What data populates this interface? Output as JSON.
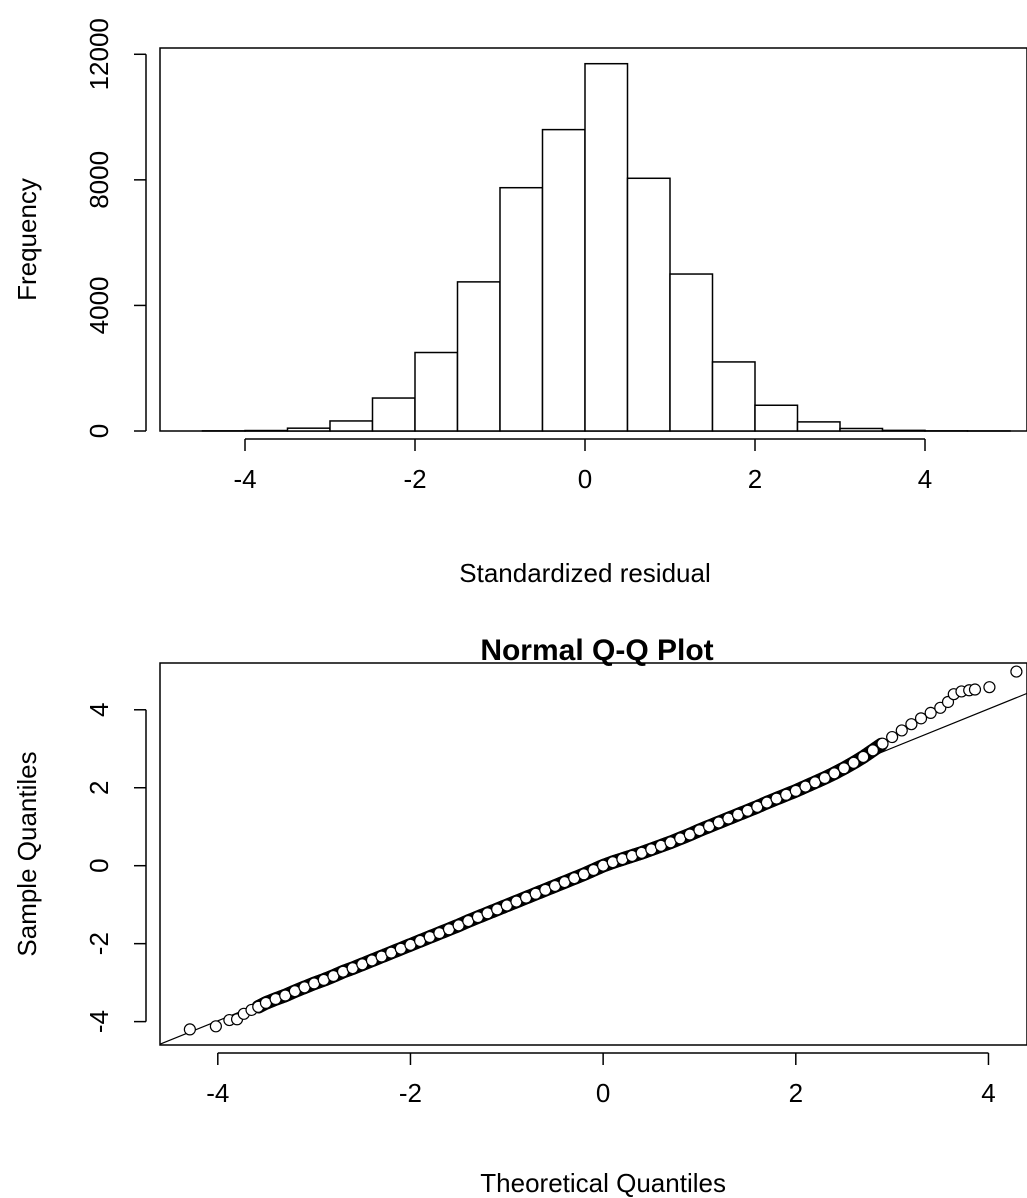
{
  "chart_data": [
    {
      "type": "bar",
      "subtype": "histogram",
      "title": "",
      "xlabel": "Standardized residual",
      "ylabel": "Frequency",
      "bin_edges": [
        -4.5,
        -4.0,
        -3.5,
        -3.0,
        -2.5,
        -2.0,
        -1.5,
        -1.0,
        -0.5,
        0.0,
        0.5,
        1.0,
        1.5,
        2.0,
        2.5,
        3.0,
        3.5,
        4.0,
        4.5,
        5.0
      ],
      "values": [
        5,
        15,
        90,
        320,
        1050,
        2500,
        4750,
        7750,
        9600,
        11700,
        8050,
        5000,
        2200,
        820,
        290,
        80,
        20,
        5,
        2
      ],
      "xlim": [
        -5.0,
        5.2
      ],
      "ylim": [
        0,
        12200
      ],
      "x_ticks": [
        -4,
        -2,
        0,
        2,
        4
      ],
      "x_tick_labels": [
        "-4",
        "-2",
        "0",
        "2",
        "4"
      ],
      "y_ticks": [
        0,
        4000,
        8000,
        12000
      ],
      "y_tick_labels": [
        "0",
        "4000",
        "8000",
        "12000"
      ],
      "grid": false
    },
    {
      "type": "scatter",
      "subtype": "qq-plot",
      "title": "Normal Q-Q Plot",
      "xlabel": "Theoretical Quantiles",
      "ylabel": "Sample Quantiles",
      "points": [
        [
          -4.29,
          -4.2
        ],
        [
          -4.02,
          -4.12
        ],
        [
          -3.88,
          -3.96
        ],
        [
          -3.8,
          -3.94
        ],
        [
          -3.73,
          -3.8
        ],
        [
          -3.65,
          -3.7
        ],
        [
          -3.58,
          -3.62
        ],
        [
          -3.5,
          -3.52
        ],
        [
          -3.4,
          -3.42
        ],
        [
          -3.3,
          -3.33
        ],
        [
          -3.2,
          -3.22
        ],
        [
          -3.1,
          -3.12
        ],
        [
          -3.0,
          -3.02
        ],
        [
          -2.9,
          -2.93
        ],
        [
          -2.8,
          -2.83
        ],
        [
          -2.7,
          -2.72
        ],
        [
          -2.6,
          -2.63
        ],
        [
          -2.5,
          -2.53
        ],
        [
          -2.4,
          -2.43
        ],
        [
          -2.3,
          -2.33
        ],
        [
          -2.2,
          -2.23
        ],
        [
          -2.1,
          -2.13
        ],
        [
          -2.0,
          -2.03
        ],
        [
          -1.9,
          -1.93
        ],
        [
          -1.8,
          -1.83
        ],
        [
          -1.7,
          -1.73
        ],
        [
          -1.6,
          -1.63
        ],
        [
          -1.5,
          -1.53
        ],
        [
          -1.4,
          -1.42
        ],
        [
          -1.3,
          -1.32
        ],
        [
          -1.2,
          -1.22
        ],
        [
          -1.1,
          -1.12
        ],
        [
          -1.0,
          -1.02
        ],
        [
          -0.9,
          -0.92
        ],
        [
          -0.8,
          -0.82
        ],
        [
          -0.7,
          -0.72
        ],
        [
          -0.6,
          -0.62
        ],
        [
          -0.5,
          -0.52
        ],
        [
          -0.4,
          -0.42
        ],
        [
          -0.3,
          -0.32
        ],
        [
          -0.2,
          -0.22
        ],
        [
          -0.1,
          -0.11
        ],
        [
          0.0,
          0.0
        ],
        [
          0.1,
          0.09
        ],
        [
          0.2,
          0.17
        ],
        [
          0.3,
          0.25
        ],
        [
          0.4,
          0.33
        ],
        [
          0.5,
          0.42
        ],
        [
          0.6,
          0.51
        ],
        [
          0.7,
          0.6
        ],
        [
          0.8,
          0.7
        ],
        [
          0.9,
          0.8
        ],
        [
          1.0,
          0.91
        ],
        [
          1.1,
          1.01
        ],
        [
          1.2,
          1.11
        ],
        [
          1.3,
          1.21
        ],
        [
          1.4,
          1.31
        ],
        [
          1.5,
          1.41
        ],
        [
          1.6,
          1.51
        ],
        [
          1.7,
          1.62
        ],
        [
          1.8,
          1.72
        ],
        [
          1.9,
          1.82
        ],
        [
          2.0,
          1.92
        ],
        [
          2.1,
          2.03
        ],
        [
          2.2,
          2.14
        ],
        [
          2.3,
          2.25
        ],
        [
          2.4,
          2.37
        ],
        [
          2.5,
          2.5
        ],
        [
          2.6,
          2.64
        ],
        [
          2.7,
          2.79
        ],
        [
          2.8,
          2.96
        ],
        [
          2.9,
          3.13
        ],
        [
          3.0,
          3.3
        ],
        [
          3.1,
          3.47
        ],
        [
          3.2,
          3.63
        ],
        [
          3.3,
          3.78
        ],
        [
          3.4,
          3.92
        ],
        [
          3.5,
          4.05
        ],
        [
          3.58,
          4.2
        ],
        [
          3.64,
          4.4
        ],
        [
          3.72,
          4.47
        ],
        [
          3.8,
          4.5
        ],
        [
          3.86,
          4.52
        ],
        [
          4.01,
          4.58
        ],
        [
          4.29,
          4.98
        ]
      ],
      "reference_line": {
        "intercept": 0.02,
        "slope": 1.0
      },
      "xlim": [
        -4.6,
        4.4
      ],
      "ylim": [
        -4.6,
        5.2
      ],
      "x_ticks": [
        -4,
        -2,
        0,
        2,
        4
      ],
      "x_tick_labels": [
        "-4",
        "-2",
        "0",
        "2",
        "4"
      ],
      "y_ticks": [
        -4,
        -2,
        0,
        2,
        4
      ],
      "y_tick_labels": [
        "-4",
        "-2",
        "0",
        "2",
        "4"
      ],
      "grid": false
    }
  ]
}
